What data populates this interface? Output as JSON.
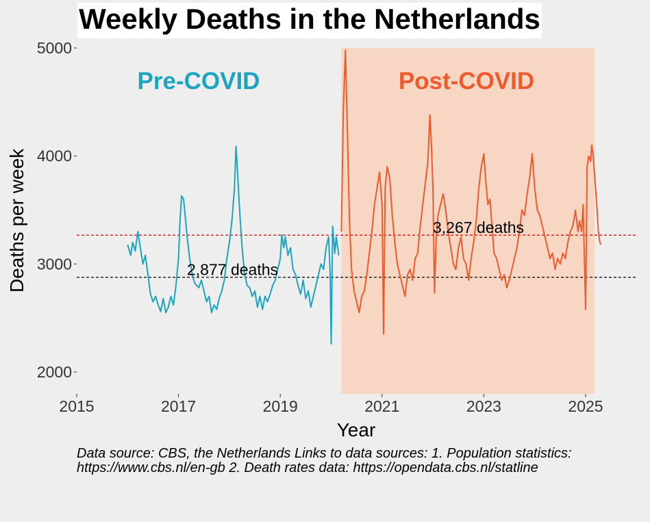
{
  "chart_data": {
    "type": "line",
    "title": "Weekly Deaths in the Netherlands",
    "xlabel": "Year",
    "ylabel": "Deaths per week",
    "xlim": [
      2015,
      2026
    ],
    "ylim": [
      1800,
      5000
    ],
    "x_ticks": [
      2015,
      2017,
      2019,
      2021,
      2023,
      2025
    ],
    "y_ticks": [
      2000,
      3000,
      4000,
      5000
    ],
    "grid": false,
    "shaded_region": {
      "x_start": 2020.2,
      "x_end": 2025.18,
      "color": "#f7d6c3"
    },
    "eras": [
      {
        "label": "Pre-COVID",
        "color": "#1ba3bf"
      },
      {
        "label": "Post-COVID",
        "color": "#f05a2b"
      }
    ],
    "series": [
      {
        "name": "Pre-COVID",
        "color": "#1ba3bf",
        "points": [
          [
            2016.0,
            3180
          ],
          [
            2016.06,
            3080
          ],
          [
            2016.1,
            3200
          ],
          [
            2016.15,
            3120
          ],
          [
            2016.2,
            3300
          ],
          [
            2016.25,
            3150
          ],
          [
            2016.3,
            3000
          ],
          [
            2016.35,
            3080
          ],
          [
            2016.4,
            2900
          ],
          [
            2016.45,
            2720
          ],
          [
            2016.5,
            2650
          ],
          [
            2016.55,
            2700
          ],
          [
            2016.6,
            2620
          ],
          [
            2016.65,
            2560
          ],
          [
            2016.7,
            2680
          ],
          [
            2016.75,
            2550
          ],
          [
            2016.8,
            2600
          ],
          [
            2016.85,
            2700
          ],
          [
            2016.9,
            2620
          ],
          [
            2016.95,
            2800
          ],
          [
            2017.0,
            3050
          ],
          [
            2017.03,
            3400
          ],
          [
            2017.06,
            3630
          ],
          [
            2017.1,
            3600
          ],
          [
            2017.13,
            3450
          ],
          [
            2017.17,
            3250
          ],
          [
            2017.22,
            3050
          ],
          [
            2017.27,
            2900
          ],
          [
            2017.32,
            2820
          ],
          [
            2017.4,
            2780
          ],
          [
            2017.45,
            2850
          ],
          [
            2017.5,
            2750
          ],
          [
            2017.55,
            2650
          ],
          [
            2017.6,
            2700
          ],
          [
            2017.65,
            2550
          ],
          [
            2017.7,
            2620
          ],
          [
            2017.75,
            2580
          ],
          [
            2017.8,
            2680
          ],
          [
            2017.85,
            2750
          ],
          [
            2017.9,
            2850
          ],
          [
            2017.95,
            3050
          ],
          [
            2018.0,
            3200
          ],
          [
            2018.05,
            3400
          ],
          [
            2018.1,
            3700
          ],
          [
            2018.13,
            4090
          ],
          [
            2018.16,
            3850
          ],
          [
            2018.2,
            3500
          ],
          [
            2018.25,
            3150
          ],
          [
            2018.3,
            2900
          ],
          [
            2018.35,
            2800
          ],
          [
            2018.4,
            2780
          ],
          [
            2018.45,
            2700
          ],
          [
            2018.5,
            2750
          ],
          [
            2018.55,
            2600
          ],
          [
            2018.6,
            2700
          ],
          [
            2018.65,
            2580
          ],
          [
            2018.7,
            2700
          ],
          [
            2018.75,
            2650
          ],
          [
            2018.8,
            2720
          ],
          [
            2018.85,
            2800
          ],
          [
            2018.9,
            2850
          ],
          [
            2018.95,
            2950
          ],
          [
            2019.0,
            3050
          ],
          [
            2019.03,
            3270
          ],
          [
            2019.07,
            3150
          ],
          [
            2019.1,
            3250
          ],
          [
            2019.15,
            3080
          ],
          [
            2019.2,
            3150
          ],
          [
            2019.25,
            2950
          ],
          [
            2019.3,
            2900
          ],
          [
            2019.35,
            2800
          ],
          [
            2019.4,
            2720
          ],
          [
            2019.45,
            2850
          ],
          [
            2019.5,
            2680
          ],
          [
            2019.55,
            2750
          ],
          [
            2019.6,
            2600
          ],
          [
            2019.65,
            2700
          ],
          [
            2019.7,
            2800
          ],
          [
            2019.75,
            2900
          ],
          [
            2019.8,
            3000
          ],
          [
            2019.85,
            2950
          ],
          [
            2019.9,
            3150
          ],
          [
            2019.95,
            3250
          ],
          [
            2019.98,
            2920
          ],
          [
            2020.0,
            2260
          ],
          [
            2020.03,
            3350
          ],
          [
            2020.07,
            3100
          ],
          [
            2020.1,
            3250
          ],
          [
            2020.15,
            3080
          ]
        ]
      },
      {
        "name": "Post-COVID",
        "color": "#f05a2b",
        "points": [
          [
            2020.2,
            3300
          ],
          [
            2020.24,
            4450
          ],
          [
            2020.28,
            4980
          ],
          [
            2020.32,
            4200
          ],
          [
            2020.36,
            3400
          ],
          [
            2020.4,
            2950
          ],
          [
            2020.45,
            2750
          ],
          [
            2020.5,
            2650
          ],
          [
            2020.55,
            2550
          ],
          [
            2020.6,
            2700
          ],
          [
            2020.65,
            2750
          ],
          [
            2020.7,
            2900
          ],
          [
            2020.75,
            3100
          ],
          [
            2020.8,
            3300
          ],
          [
            2020.85,
            3550
          ],
          [
            2020.9,
            3700
          ],
          [
            2020.95,
            3850
          ],
          [
            2021.0,
            3550
          ],
          [
            2021.03,
            2350
          ],
          [
            2021.06,
            3700
          ],
          [
            2021.1,
            3900
          ],
          [
            2021.15,
            3800
          ],
          [
            2021.2,
            3450
          ],
          [
            2021.25,
            3200
          ],
          [
            2021.3,
            3000
          ],
          [
            2021.35,
            2900
          ],
          [
            2021.4,
            2800
          ],
          [
            2021.45,
            2700
          ],
          [
            2021.5,
            2900
          ],
          [
            2021.55,
            2950
          ],
          [
            2021.6,
            2850
          ],
          [
            2021.65,
            3050
          ],
          [
            2021.7,
            3100
          ],
          [
            2021.75,
            3350
          ],
          [
            2021.8,
            3550
          ],
          [
            2021.85,
            3750
          ],
          [
            2021.9,
            3950
          ],
          [
            2021.94,
            4380
          ],
          [
            2021.97,
            4100
          ],
          [
            2022.0,
            3700
          ],
          [
            2022.03,
            2730
          ],
          [
            2022.06,
            3200
          ],
          [
            2022.1,
            3450
          ],
          [
            2022.15,
            3550
          ],
          [
            2022.2,
            3650
          ],
          [
            2022.25,
            3500
          ],
          [
            2022.3,
            3300
          ],
          [
            2022.35,
            3150
          ],
          [
            2022.4,
            3000
          ],
          [
            2022.45,
            2950
          ],
          [
            2022.5,
            3150
          ],
          [
            2022.55,
            3250
          ],
          [
            2022.6,
            3050
          ],
          [
            2022.65,
            3000
          ],
          [
            2022.7,
            2850
          ],
          [
            2022.75,
            3050
          ],
          [
            2022.8,
            3200
          ],
          [
            2022.85,
            3400
          ],
          [
            2022.9,
            3700
          ],
          [
            2022.95,
            3900
          ],
          [
            2023.0,
            4020
          ],
          [
            2023.04,
            3750
          ],
          [
            2023.08,
            3550
          ],
          [
            2023.12,
            3600
          ],
          [
            2023.16,
            3350
          ],
          [
            2023.2,
            3100
          ],
          [
            2023.25,
            3050
          ],
          [
            2023.3,
            2950
          ],
          [
            2023.35,
            2850
          ],
          [
            2023.4,
            2900
          ],
          [
            2023.45,
            2780
          ],
          [
            2023.5,
            2850
          ],
          [
            2023.55,
            2950
          ],
          [
            2023.6,
            3050
          ],
          [
            2023.65,
            3150
          ],
          [
            2023.7,
            3300
          ],
          [
            2023.75,
            3500
          ],
          [
            2023.8,
            3450
          ],
          [
            2023.85,
            3650
          ],
          [
            2023.9,
            3800
          ],
          [
            2023.95,
            4020
          ],
          [
            2024.0,
            3700
          ],
          [
            2024.05,
            3500
          ],
          [
            2024.1,
            3450
          ],
          [
            2024.15,
            3350
          ],
          [
            2024.2,
            3250
          ],
          [
            2024.25,
            3150
          ],
          [
            2024.3,
            3050
          ],
          [
            2024.35,
            3100
          ],
          [
            2024.4,
            2950
          ],
          [
            2024.45,
            3050
          ],
          [
            2024.5,
            3000
          ],
          [
            2024.55,
            3100
          ],
          [
            2024.6,
            3050
          ],
          [
            2024.65,
            3200
          ],
          [
            2024.7,
            3300
          ],
          [
            2024.75,
            3350
          ],
          [
            2024.8,
            3500
          ],
          [
            2024.85,
            3300
          ],
          [
            2024.88,
            3400
          ],
          [
            2024.92,
            3300
          ],
          [
            2024.95,
            3550
          ],
          [
            2025.0,
            2580
          ],
          [
            2025.03,
            3900
          ],
          [
            2025.06,
            4000
          ],
          [
            2025.1,
            3950
          ],
          [
            2025.12,
            4100
          ],
          [
            2025.15,
            4000
          ],
          [
            2025.18,
            3800
          ],
          [
            2025.22,
            3550
          ],
          [
            2025.25,
            3300
          ],
          [
            2025.28,
            3200
          ],
          [
            2025.3,
            3180
          ]
        ]
      }
    ],
    "reference_lines": [
      {
        "y": 2877,
        "label": "2,877 deaths",
        "color": "#000000"
      },
      {
        "y": 3267,
        "label": "3,267 deaths",
        "color": "#cc0000"
      }
    ]
  },
  "caption": {
    "line1": "Data source: CBS, the Netherlands Links to data sources: 1. Population statistics:",
    "line2": "https://www.cbs.nl/en-gb 2. Death rates data: https://opendata.cbs.nl/statline"
  }
}
